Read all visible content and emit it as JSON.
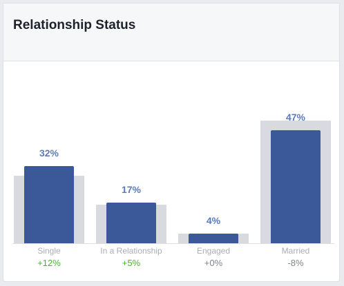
{
  "header": {
    "title": "Relationship Status"
  },
  "chart_data": {
    "type": "bar",
    "title": "Relationship Status",
    "categories": [
      "Single",
      "In a Relationship",
      "Engaged",
      "Married"
    ],
    "series": [
      {
        "values": [
          32,
          17,
          4,
          47
        ]
      },
      {
        "values": [
          28,
          16,
          4,
          51
        ]
      }
    ],
    "value_labels": [
      "32%",
      "17%",
      "4%",
      "47%"
    ],
    "changes": [
      "+12%",
      "+5%",
      "+0%",
      "-8%"
    ],
    "ylim": [
      0,
      51
    ],
    "grid": false,
    "colors": {
      "foreground": "#3b5998",
      "background": "#d8dadf",
      "positive": "#42b72a",
      "neutral": "#7f848c"
    }
  }
}
